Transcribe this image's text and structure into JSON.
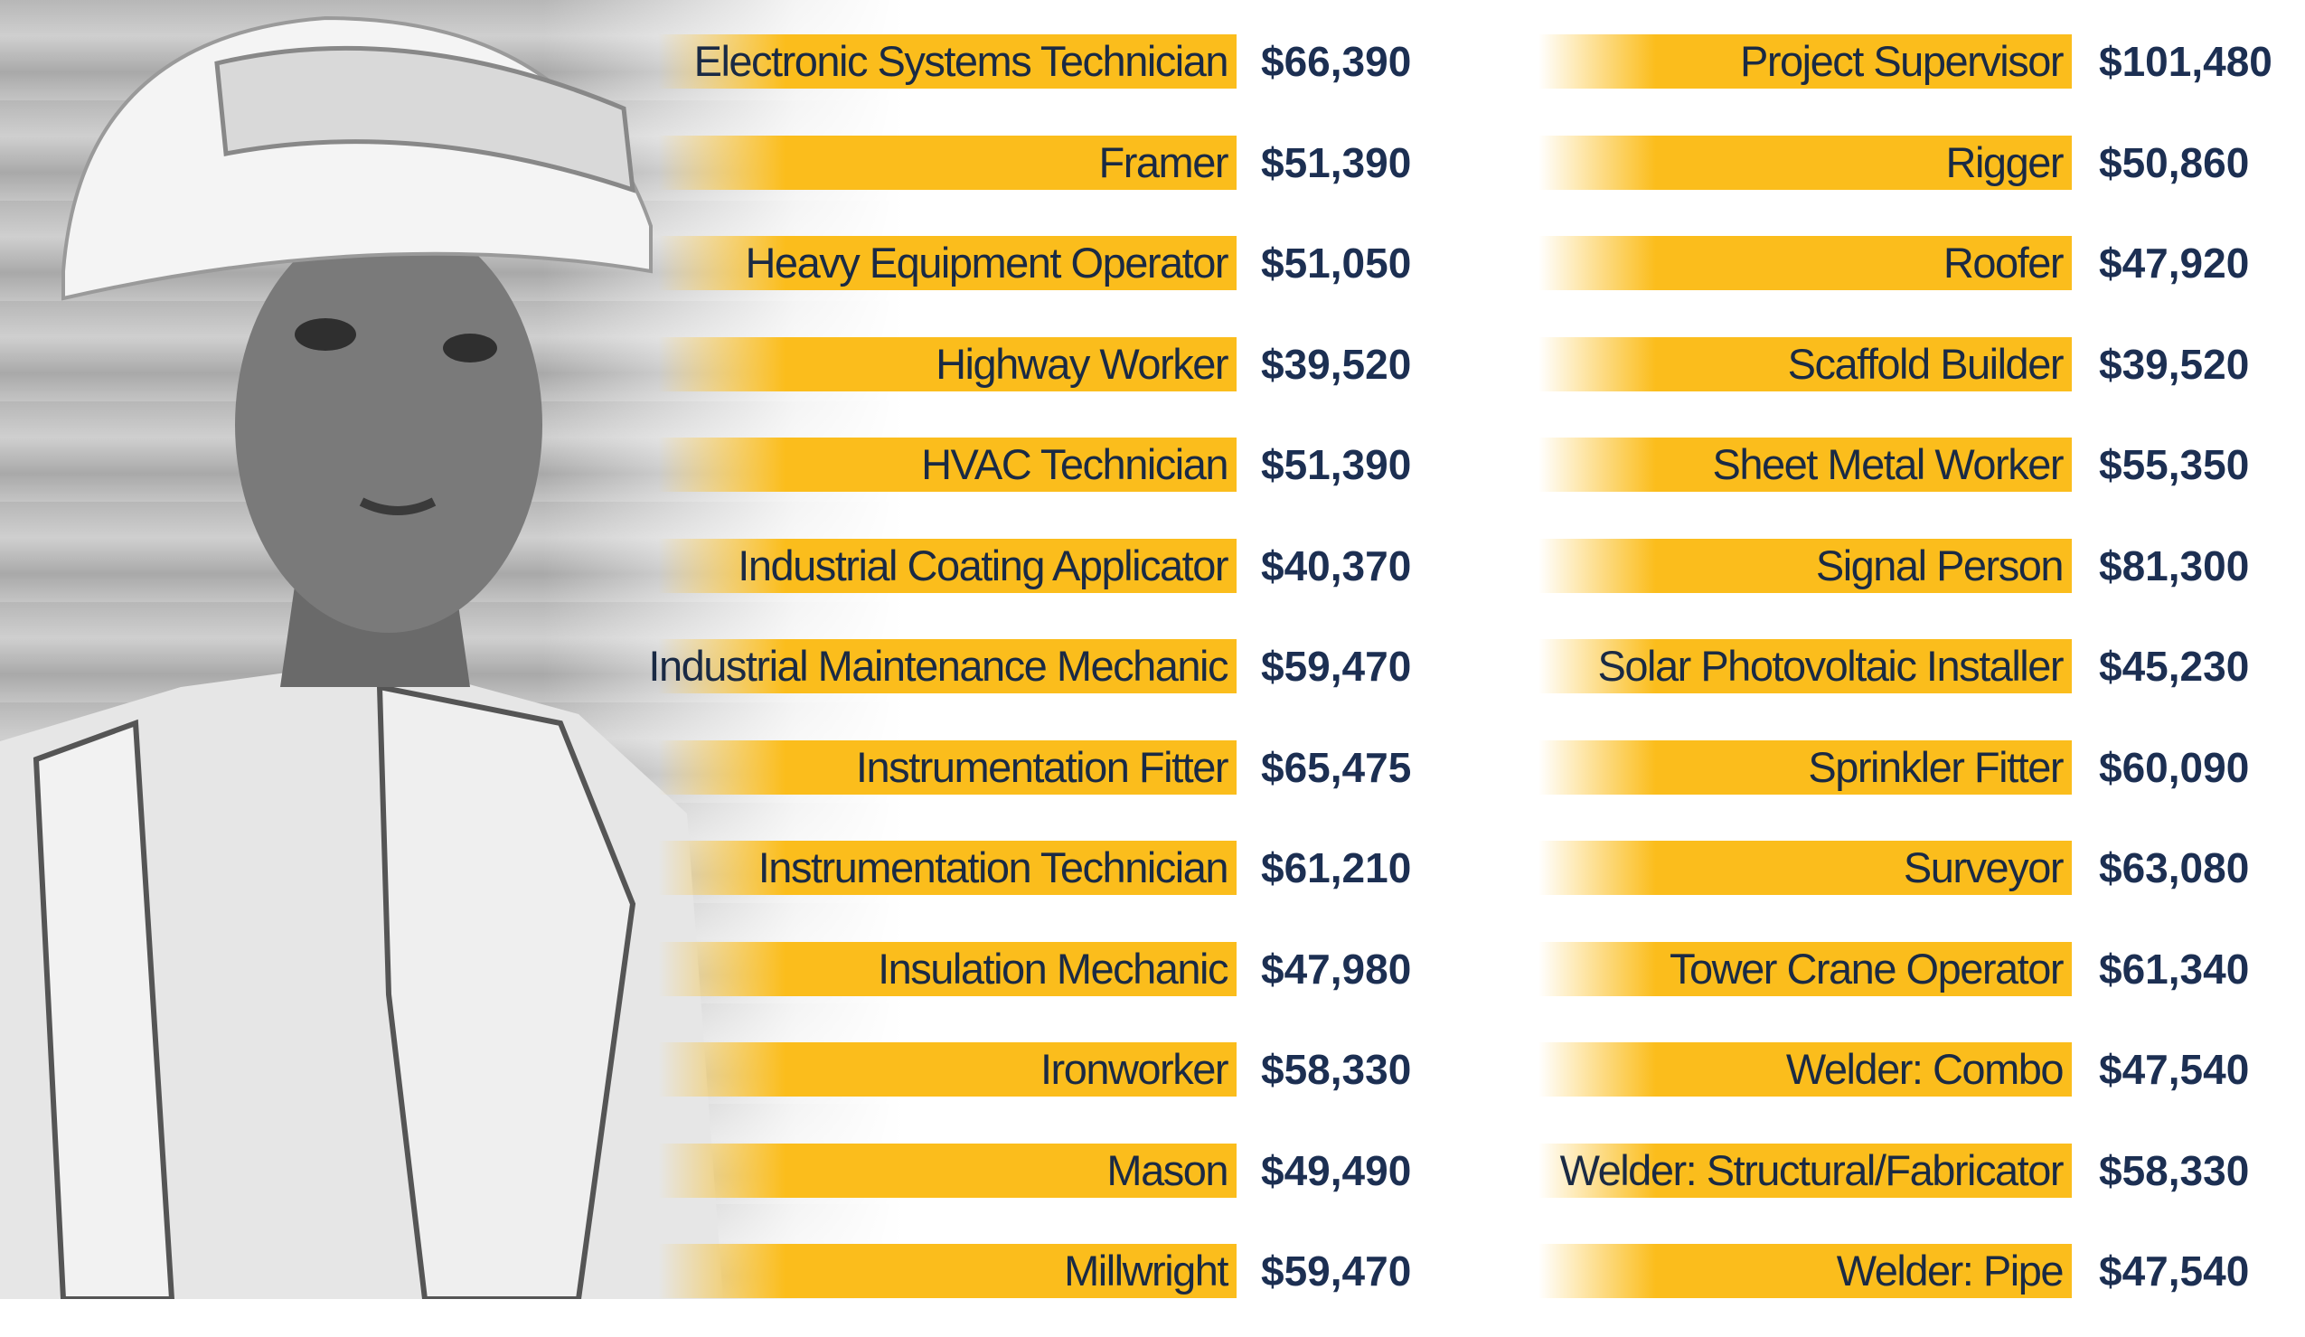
{
  "colors": {
    "bar": "#fbbd1c",
    "label_text": "#1a2a44",
    "salary_text": "#1c2f52"
  },
  "image": {
    "subject": "construction-worker-photo"
  },
  "left_column": [
    {
      "title": "Electronic Systems Technician",
      "salary": "$66,390"
    },
    {
      "title": "Framer",
      "salary": "$51,390"
    },
    {
      "title": "Heavy Equipment Operator",
      "salary": "$51,050"
    },
    {
      "title": "Highway Worker",
      "salary": "$39,520"
    },
    {
      "title": "HVAC Technician",
      "salary": "$51,390"
    },
    {
      "title": "Industrial Coating Applicator",
      "salary": "$40,370"
    },
    {
      "title": "Industrial Maintenance Mechanic",
      "salary": "$59,470"
    },
    {
      "title": "Instrumentation Fitter",
      "salary": "$65,475"
    },
    {
      "title": "Instrumentation Technician",
      "salary": "$61,210"
    },
    {
      "title": "Insulation Mechanic",
      "salary": "$47,980"
    },
    {
      "title": "Ironworker",
      "salary": "$58,330"
    },
    {
      "title": "Mason",
      "salary": "$49,490"
    },
    {
      "title": "Millwright",
      "salary": "$59,470"
    }
  ],
  "right_column": [
    {
      "title": "Project Supervisor",
      "salary": "$101,480"
    },
    {
      "title": "Rigger",
      "salary": "$50,860"
    },
    {
      "title": "Roofer",
      "salary": "$47,920"
    },
    {
      "title": "Scaffold Builder",
      "salary": "$39,520"
    },
    {
      "title": "Sheet Metal Worker",
      "salary": "$55,350"
    },
    {
      "title": "Signal Person",
      "salary": "$81,300"
    },
    {
      "title": "Solar Photovoltaic Installer",
      "salary": "$45,230"
    },
    {
      "title": "Sprinkler Fitter",
      "salary": "$60,090"
    },
    {
      "title": "Surveyor",
      "salary": "$63,080"
    },
    {
      "title": "Tower Crane Operator",
      "salary": "$61,340"
    },
    {
      "title": "Welder: Combo",
      "salary": "$47,540"
    },
    {
      "title": "Welder: Structural/Fabricator",
      "salary": "$58,330"
    },
    {
      "title": "Welder: Pipe",
      "salary": "$47,540"
    }
  ]
}
